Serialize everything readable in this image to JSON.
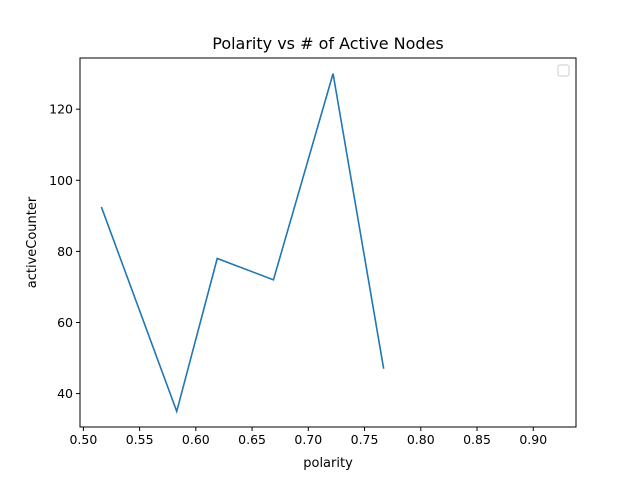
{
  "chart_data": {
    "type": "line",
    "title": "Polarity vs # of Active Nodes",
    "xlabel": "polarity",
    "ylabel": "activeCounter",
    "xlim": [
      0.497,
      0.938
    ],
    "ylim": [
      30.6,
      134.4
    ],
    "xticks": [
      0.5,
      0.55,
      0.6,
      0.65,
      0.7,
      0.75,
      0.8,
      0.85,
      0.9
    ],
    "xtick_labels": [
      "0.50",
      "0.55",
      "0.60",
      "0.65",
      "0.70",
      "0.75",
      "0.80",
      "0.85",
      "0.90"
    ],
    "yticks": [
      40,
      60,
      80,
      100,
      120
    ],
    "ytick_labels": [
      "40",
      "60",
      "80",
      "100",
      "120"
    ],
    "grid": false,
    "legend": "top-right",
    "series": [
      {
        "color": "#1f77b4",
        "x": [
          0.516,
          0.583,
          0.619,
          0.669,
          0.722,
          0.767
        ],
        "y": [
          92.5,
          35,
          78,
          72,
          130,
          47
        ]
      }
    ]
  }
}
